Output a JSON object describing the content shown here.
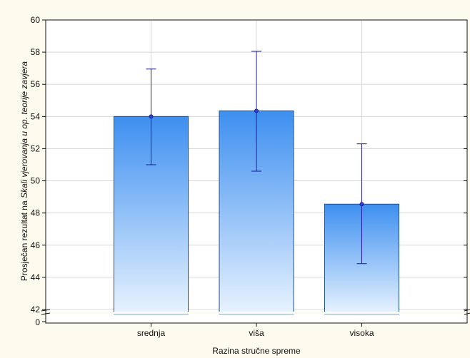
{
  "chart_data": {
    "type": "bar",
    "categories": [
      "srednja",
      "viša",
      "visoka"
    ],
    "values": [
      54.0,
      54.35,
      48.55
    ],
    "error_bars": [
      {
        "low": 51.0,
        "high": 56.95
      },
      {
        "low": 50.6,
        "high": 58.05
      },
      {
        "low": 44.85,
        "high": 52.3
      }
    ],
    "xlabel": "Razina stručne spreme",
    "ylabel_parts": [
      {
        "text": "Prosječan rezultat na ",
        "italic": false
      },
      {
        "text": "Skali vjerovanja u op. teorije zavjera",
        "italic": true
      }
    ],
    "ylim": [
      42,
      60
    ],
    "yticks": [
      "42",
      "44",
      "46",
      "48",
      "50",
      "52",
      "54",
      "56",
      "58",
      "60"
    ],
    "ybreak_label": "0",
    "grid": true,
    "legend": "none",
    "colors": {
      "bar_top": "#3d8ff0",
      "bar_bottom": "#e8f3fe",
      "bar_stroke": "#1f4e96",
      "error": "#1a1a9c",
      "grid": "#d8d8d8",
      "background": "#fdfbee",
      "plot_background": "#ffffff"
    }
  }
}
